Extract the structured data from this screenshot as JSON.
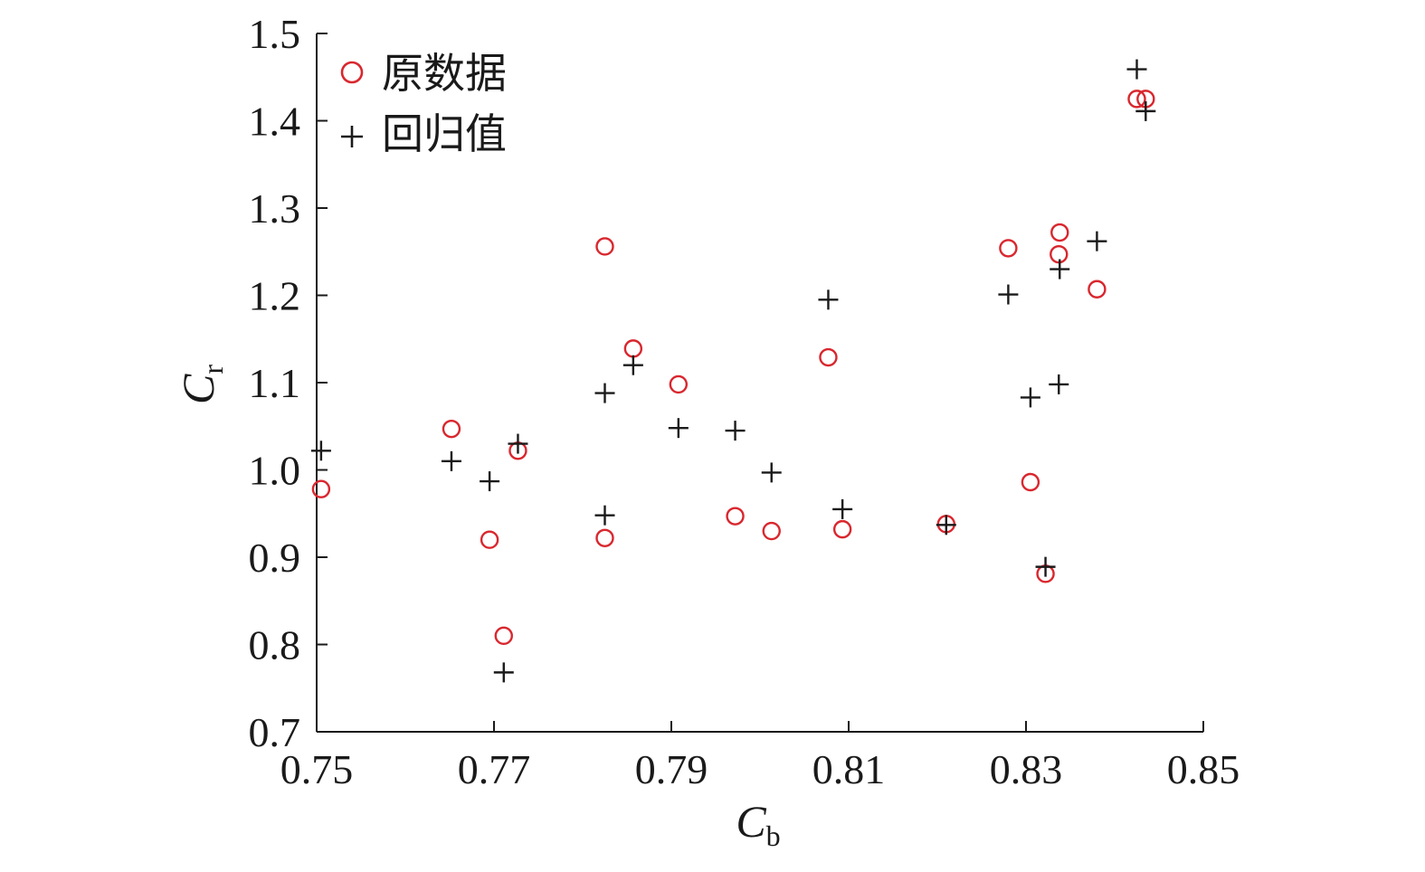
{
  "chart_data": {
    "type": "scatter",
    "xlabel": {
      "main": "C",
      "sub": "b"
    },
    "ylabel": {
      "main": "C",
      "sub": "r"
    },
    "xlim": [
      0.75,
      0.85
    ],
    "ylim": [
      0.7,
      1.5
    ],
    "x_ticks": [
      0.75,
      0.77,
      0.79,
      0.81,
      0.83,
      0.85
    ],
    "x_tick_labels": [
      "0.75",
      "0.77",
      "0.79",
      "0.81",
      "0.83",
      "0.85"
    ],
    "y_ticks": [
      0.7,
      0.8,
      0.9,
      1.0,
      1.1,
      1.2,
      1.3,
      1.4,
      1.5
    ],
    "y_tick_labels": [
      "0.7",
      "0.8",
      "0.9",
      "1.0",
      "1.1",
      "1.2",
      "1.3",
      "1.4",
      "1.5"
    ],
    "grid": false,
    "legend_position": "top-left",
    "series": [
      {
        "name": "原数据",
        "marker": "circle",
        "color": "#d9272e",
        "points": [
          [
            0.7505,
            0.978
          ],
          [
            0.7652,
            1.047
          ],
          [
            0.7695,
            0.92
          ],
          [
            0.7711,
            0.81
          ],
          [
            0.7727,
            1.022
          ],
          [
            0.7825,
            1.256
          ],
          [
            0.7825,
            0.922
          ],
          [
            0.7857,
            1.139
          ],
          [
            0.7908,
            1.098
          ],
          [
            0.7972,
            0.947
          ],
          [
            0.8013,
            0.93
          ],
          [
            0.8077,
            1.129
          ],
          [
            0.8093,
            0.932
          ],
          [
            0.821,
            0.938
          ],
          [
            0.828,
            1.254
          ],
          [
            0.8305,
            0.986
          ],
          [
            0.8322,
            0.881
          ],
          [
            0.8337,
            1.247
          ],
          [
            0.8338,
            1.272
          ],
          [
            0.838,
            1.207
          ],
          [
            0.8425,
            1.425
          ],
          [
            0.8435,
            1.425
          ]
        ]
      },
      {
        "name": "回归值",
        "marker": "plus",
        "color": "#1a1a1a",
        "points": [
          [
            0.7505,
            1.022
          ],
          [
            0.7652,
            1.01
          ],
          [
            0.7695,
            0.987
          ],
          [
            0.7711,
            0.768
          ],
          [
            0.7727,
            1.03
          ],
          [
            0.7825,
            1.088
          ],
          [
            0.7825,
            0.948
          ],
          [
            0.7857,
            1.12
          ],
          [
            0.7908,
            1.048
          ],
          [
            0.7972,
            1.045
          ],
          [
            0.8013,
            0.997
          ],
          [
            0.8077,
            1.195
          ],
          [
            0.8093,
            0.955
          ],
          [
            0.821,
            0.937
          ],
          [
            0.828,
            1.201
          ],
          [
            0.8305,
            1.083
          ],
          [
            0.8322,
            0.889
          ],
          [
            0.8337,
            1.098
          ],
          [
            0.8338,
            1.23
          ],
          [
            0.838,
            1.262
          ],
          [
            0.8425,
            1.459
          ],
          [
            0.8435,
            1.411
          ]
        ]
      }
    ]
  }
}
